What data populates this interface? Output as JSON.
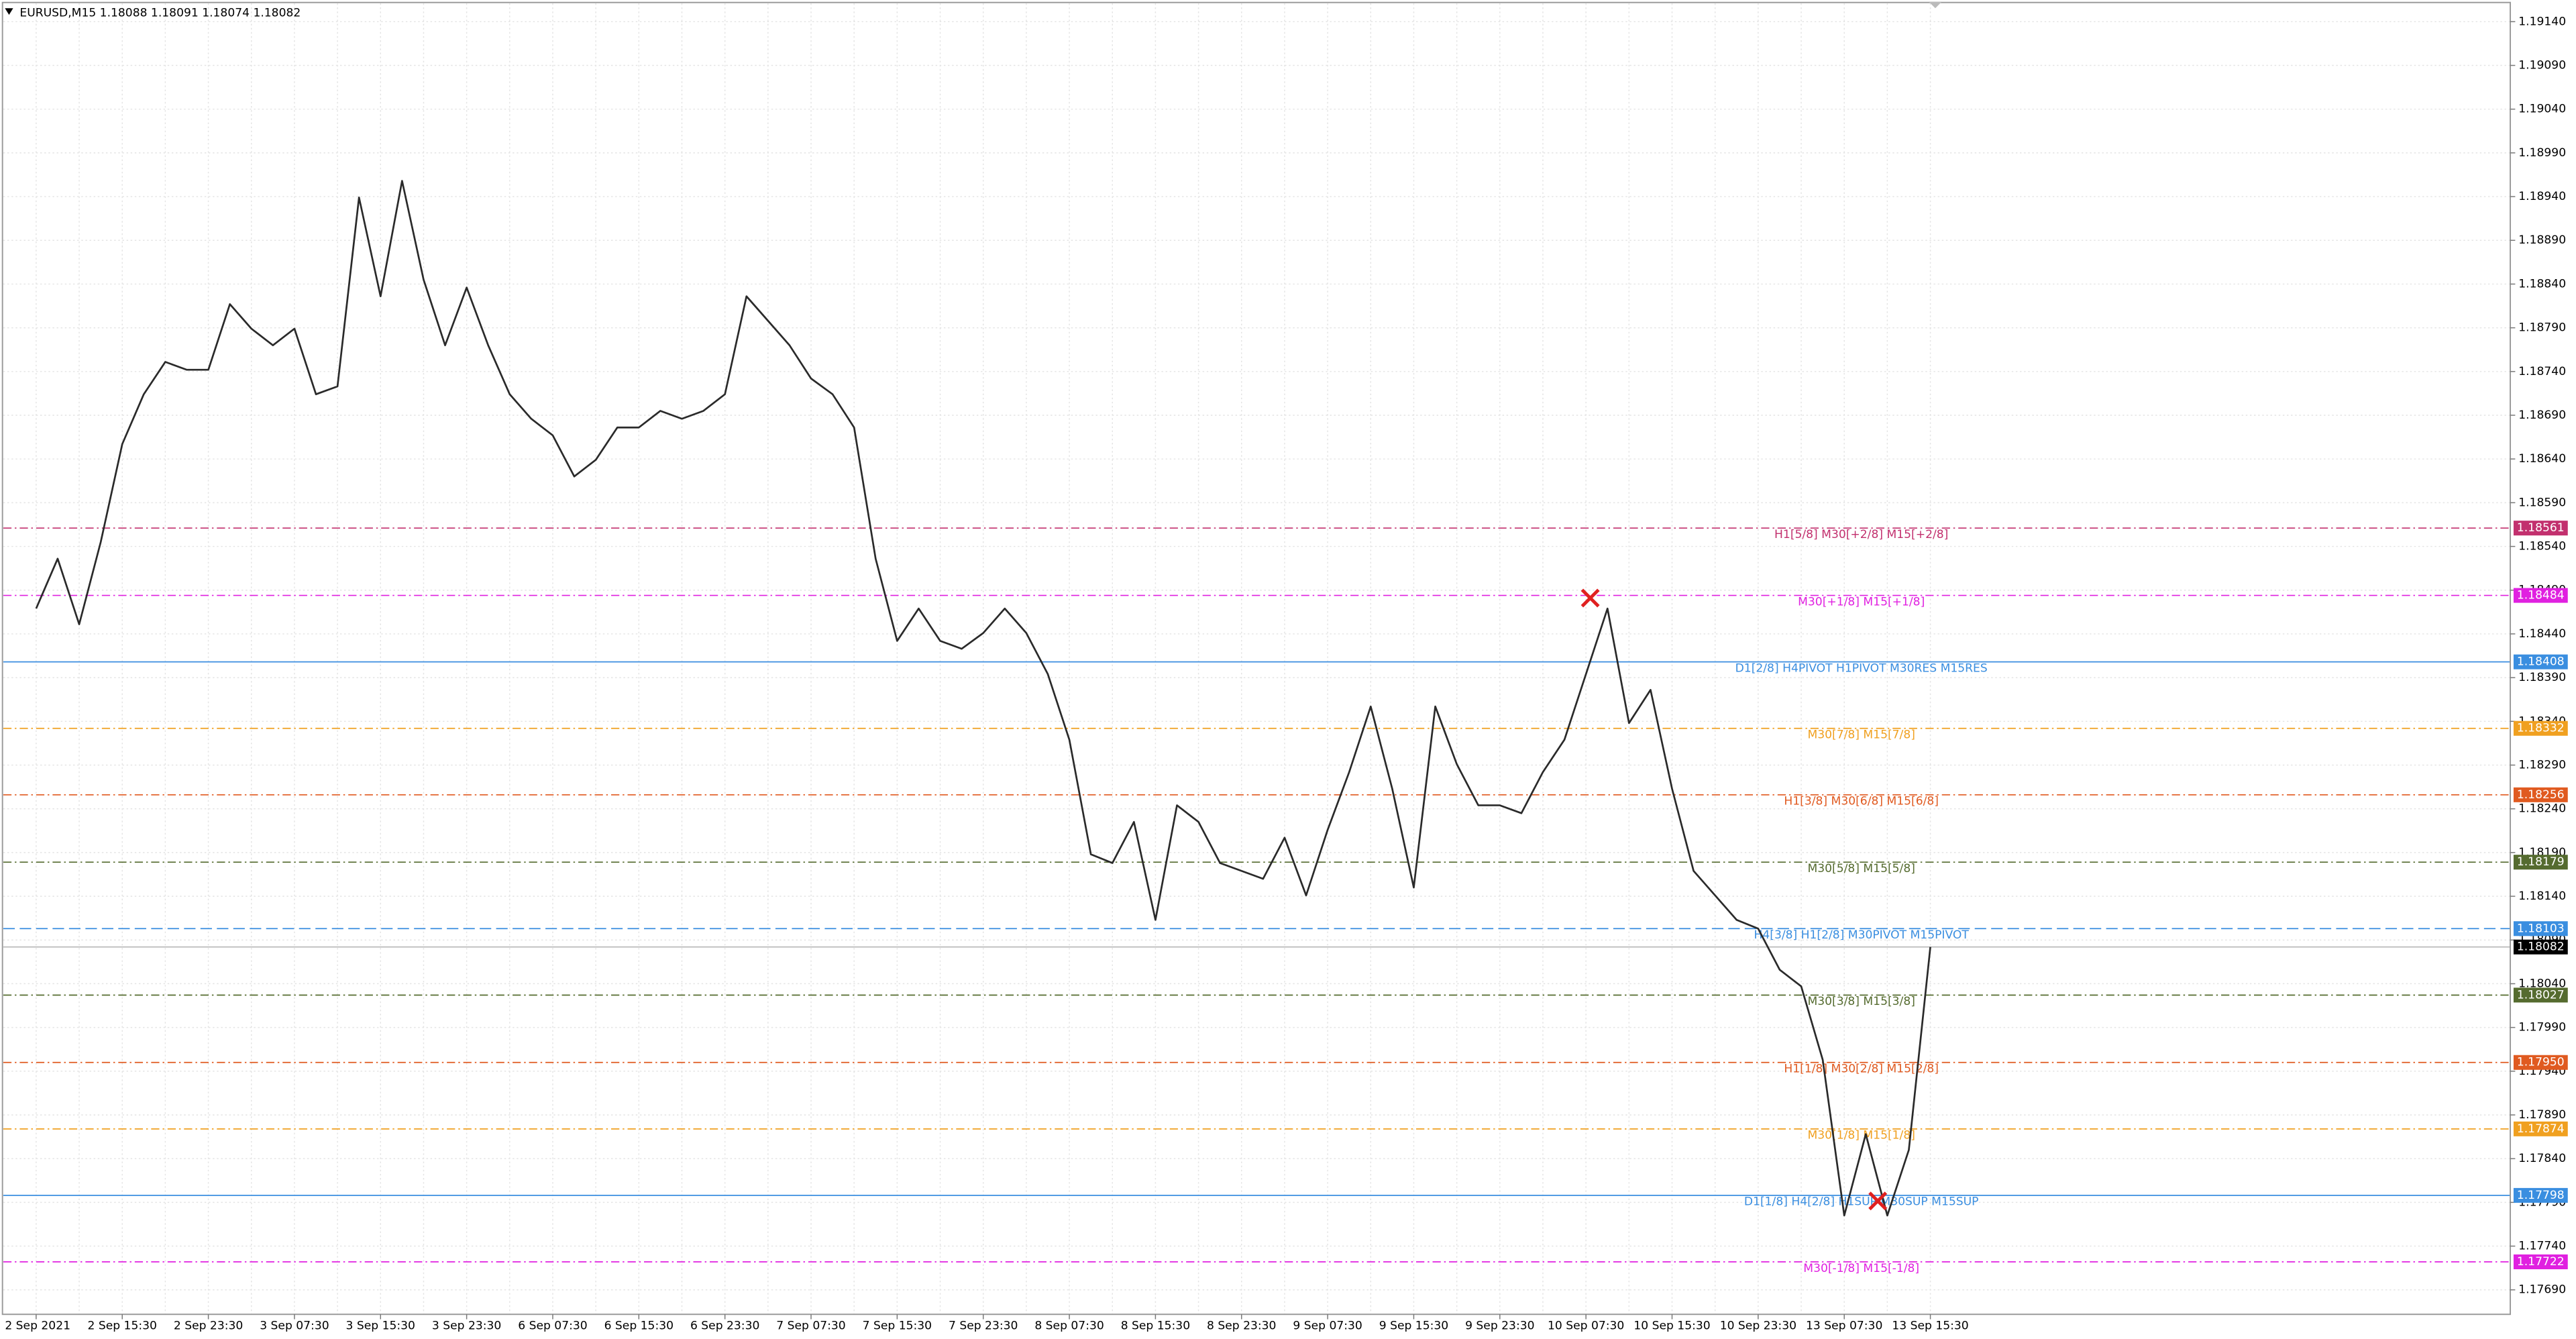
{
  "chart_data": {
    "type": "line",
    "title": "EURUSD,M15  1.18088 1.18091 1.18074 1.18082",
    "categories": [
      "2 Sep 2021",
      null,
      null,
      null,
      "2 Sep 15:30",
      null,
      null,
      null,
      "2 Sep 23:30",
      null,
      null,
      null,
      "3 Sep 07:30",
      null,
      null,
      null,
      "3 Sep 15:30",
      null,
      null,
      null,
      "3 Sep 23:30",
      null,
      null,
      null,
      "6 Sep 07:30",
      null,
      null,
      null,
      "6 Sep 15:30",
      null,
      null,
      null,
      "6 Sep 23:30",
      null,
      null,
      null,
      "7 Sep 07:30",
      null,
      null,
      null,
      "7 Sep 15:30",
      null,
      null,
      null,
      "7 Sep 23:30",
      null,
      null,
      null,
      "8 Sep 07:30",
      null,
      null,
      null,
      "8 Sep 15:30",
      null,
      null,
      null,
      "8 Sep 23:30",
      null,
      null,
      null,
      "9 Sep 07:30",
      null,
      null,
      null,
      "9 Sep 15:30",
      null,
      null,
      null,
      "9 Sep 23:30",
      null,
      null,
      null,
      "10 Sep 07:30",
      null,
      null,
      null,
      "10 Sep 15:30",
      null,
      null,
      null,
      "10 Sep 23:30",
      null,
      null,
      null,
      "13 Sep 07:30",
      null,
      null,
      null,
      "13 Sep 15:30"
    ],
    "series": [
      {
        "name": "EURUSD,M15",
        "color": "#2a2a2a",
        "values": [
          1.18469,
          1.18526,
          1.18451,
          1.18545,
          1.18657,
          1.18714,
          1.18751,
          1.18742,
          1.18742,
          1.18817,
          1.18789,
          1.1877,
          1.18789,
          1.18714,
          1.18723,
          1.18939,
          1.18826,
          1.18958,
          1.18845,
          1.1877,
          1.18836,
          1.1877,
          1.18714,
          1.18686,
          1.18667,
          1.1862,
          1.18639,
          1.18676,
          1.18676,
          1.18695,
          1.18686,
          1.18695,
          1.18714,
          1.18826,
          1.18798,
          1.1877,
          1.18732,
          1.18714,
          1.18676,
          1.18526,
          1.18432,
          1.18469,
          1.18432,
          1.18423,
          1.18441,
          1.18469,
          1.18441,
          1.18394,
          1.18319,
          1.18188,
          1.18178,
          1.18225,
          1.18113,
          1.18244,
          1.18225,
          1.18178,
          1.18169,
          1.1816,
          1.18207,
          1.18141,
          1.18216,
          1.18282,
          1.18357,
          1.18263,
          1.1815,
          1.18357,
          1.18291,
          1.18244,
          1.18244,
          1.18235,
          1.18282,
          1.18319,
          1.18394,
          1.18469,
          1.18338,
          1.18376,
          1.18263,
          1.18169,
          1.18141,
          1.18113,
          1.18103,
          1.18056,
          1.18037,
          1.17953,
          1.17775,
          1.17868,
          1.17775,
          1.1785,
          1.18082
        ]
      }
    ],
    "ylim": [
      1.17662,
      1.19161
    ],
    "yticks": [
      {
        "value": 1.1914,
        "label": "1.19140"
      },
      {
        "value": 1.1909,
        "label": "1.19090"
      },
      {
        "value": 1.1904,
        "label": "1.19040"
      },
      {
        "value": 1.1899,
        "label": "1.18990"
      },
      {
        "value": 1.1894,
        "label": "1.18940"
      },
      {
        "value": 1.1889,
        "label": "1.18890"
      },
      {
        "value": 1.1884,
        "label": "1.18840"
      },
      {
        "value": 1.1879,
        "label": "1.18790"
      },
      {
        "value": 1.1874,
        "label": "1.18740"
      },
      {
        "value": 1.1869,
        "label": "1.18690"
      },
      {
        "value": 1.1864,
        "label": "1.18640"
      },
      {
        "value": 1.1859,
        "label": "1.18590"
      },
      {
        "value": 1.1854,
        "label": "1.18540"
      },
      {
        "value": 1.1849,
        "label": "1.18490"
      },
      {
        "value": 1.1844,
        "label": "1.18440"
      },
      {
        "value": 1.1839,
        "label": "1.18390"
      },
      {
        "value": 1.1834,
        "label": "1.18340"
      },
      {
        "value": 1.1829,
        "label": "1.18290"
      },
      {
        "value": 1.1824,
        "label": "1.18240"
      },
      {
        "value": 1.1819,
        "label": "1.18190"
      },
      {
        "value": 1.1814,
        "label": "1.18140"
      },
      {
        "value": 1.1809,
        "label": "1.18090"
      },
      {
        "value": 1.1804,
        "label": "1.18040"
      },
      {
        "value": 1.1799,
        "label": "1.17990"
      },
      {
        "value": 1.1794,
        "label": "1.17940"
      },
      {
        "value": 1.1789,
        "label": "1.17890"
      },
      {
        "value": 1.1784,
        "label": "1.17840"
      },
      {
        "value": 1.1779,
        "label": "1.17790"
      },
      {
        "value": 1.1774,
        "label": "1.17740"
      },
      {
        "value": 1.1769,
        "label": "1.17690"
      }
    ],
    "grid": true,
    "levels": [
      {
        "name": "H1[5/8] M30[+2/8] M15[+2/8]",
        "value": 1.18561,
        "value_label": "1.18561",
        "color": "#c2306e",
        "dash": "dashdot"
      },
      {
        "name": "M30[+1/8] M15[+1/8]",
        "value": 1.18484,
        "value_label": "1.18484",
        "color": "#e020e0",
        "dash": "dashdot"
      },
      {
        "name": "D1[2/8] H4PIVOT H1PIVOT M30RES M15RES",
        "value": 1.18408,
        "value_label": "1.18408",
        "color": "#3a8ee0",
        "dash": "solid"
      },
      {
        "name": "M30[7/8] M15[7/8]",
        "value": 1.18332,
        "value_label": "1.18332",
        "color": "#f0a020",
        "dash": "dashdot"
      },
      {
        "name": "H1[3/8] M30[6/8] M15[6/8]",
        "value": 1.18256,
        "value_label": "1.18256",
        "color": "#e05a20",
        "dash": "dashdot"
      },
      {
        "name": "M30[5/8] M15[5/8]",
        "value": 1.18179,
        "value_label": "1.18179",
        "color": "#556b2f",
        "dash": "dashdot"
      },
      {
        "name": "H4[3/8] H1[2/8] M30PIVOT M15PIVOT",
        "value": 1.18103,
        "value_label": "1.18103",
        "color": "#3a8ee0",
        "dash": "dashed"
      },
      {
        "name": "M30[3/8] M15[3/8]",
        "value": 1.18027,
        "value_label": "1.18027",
        "color": "#556b2f",
        "dash": "dashdot"
      },
      {
        "name": "H1[1/8] M30[2/8] M15[2/8]",
        "value": 1.1795,
        "value_label": "1.17950",
        "color": "#e05a20",
        "dash": "dashdot"
      },
      {
        "name": "M30[1/8] M15[1/8]",
        "value": 1.17874,
        "value_label": "1.17874",
        "color": "#f0a020",
        "dash": "dashdot"
      },
      {
        "name": "D1[1/8] H4[2/8] H1SUP M30SUP M15SUP",
        "value": 1.17798,
        "value_label": "1.17798",
        "color": "#3a8ee0",
        "dash": "solid"
      },
      {
        "name": "M30[-1/8] M15[-1/8]",
        "value": 1.17722,
        "value_label": "1.17722",
        "color": "#e020e0",
        "dash": "dashdot"
      }
    ],
    "last_price": 1.18082
  }
}
